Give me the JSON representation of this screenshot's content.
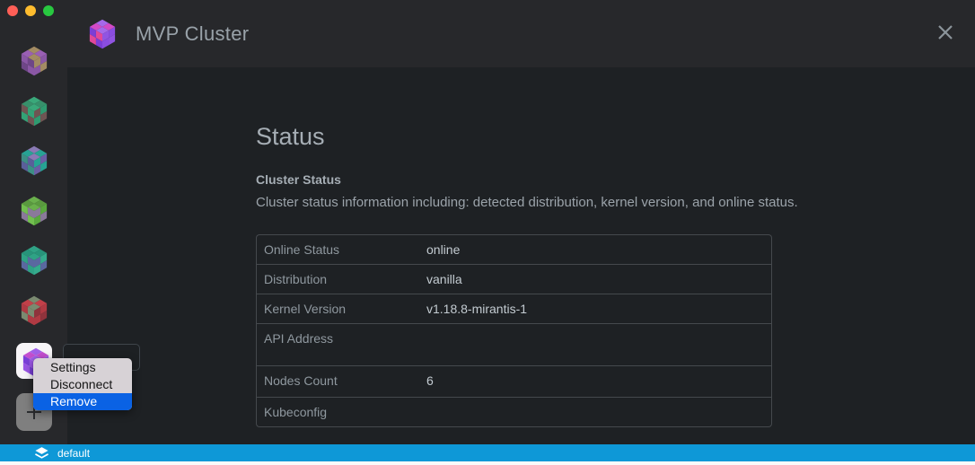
{
  "window": {
    "title": "MVP Cluster",
    "traffic_lights": {
      "red": "#ff5f57",
      "yellow": "#febc2e",
      "green": "#28c840"
    }
  },
  "colors": {
    "window_bg": "#27282b",
    "content_bg": "#1e2124",
    "statusbar": "#0e98d7",
    "menu_highlight": "#0a62e4",
    "menu_bg": "#d7d2d6",
    "table_border": "#45494d"
  },
  "header_icon": {
    "top": [
      "#a569ea",
      "#d24ac6"
    ],
    "left": [
      "#7b3ed6",
      "#e0489a"
    ],
    "right": [
      "#9154e2",
      "#8a4de0"
    ]
  },
  "sidebar": {
    "clusters": [
      {
        "top": [
          "#a38b63",
          "#9a5fb5"
        ],
        "left": [
          "#8a57a5",
          "#6e4687"
        ],
        "right": [
          "#a38b63",
          "#8a57a5"
        ]
      },
      {
        "top": [
          "#3aa87a",
          "#37906b"
        ],
        "left": [
          "#6f5553",
          "#33a276"
        ],
        "right": [
          "#6f5553",
          "#2f9a70"
        ]
      },
      {
        "top": [
          "#8a7ab5",
          "#27a394"
        ],
        "left": [
          "#3d8f85",
          "#5a5f9a"
        ],
        "right": [
          "#27a394",
          "#6a5fa5"
        ]
      },
      {
        "top": [
          "#6ab04c",
          "#5a9a3f"
        ],
        "left": [
          "#72bf4f",
          "#8a799a"
        ],
        "right": [
          "#8a799a",
          "#5aa83e"
        ]
      },
      {
        "top": [
          "#2fa285",
          "#27947a"
        ],
        "left": [
          "#2fa285",
          "#5a68a0"
        ],
        "right": [
          "#5a68a0",
          "#35ab8d"
        ]
      },
      {
        "top": [
          "#7a8a70",
          "#c24049"
        ],
        "left": [
          "#b03a43",
          "#7a8a70"
        ],
        "right": [
          "#8f333c",
          "#b03a43"
        ]
      },
      {
        "top": [
          "#a060e8",
          "#c44fd0"
        ],
        "left": [
          "#7a3fd8",
          "#9a55e5"
        ],
        "right": [
          "#8a4de0",
          "#a060e8"
        ]
      }
    ],
    "selected_index": 6
  },
  "context_menu": {
    "items": [
      {
        "label": "Settings",
        "highlighted": false
      },
      {
        "label": "Disconnect",
        "highlighted": false
      },
      {
        "label": "Remove",
        "highlighted": true
      }
    ]
  },
  "main": {
    "heading": "Status",
    "section_title": "Cluster Status",
    "description": "Cluster status information including: detected distribution, kernel version, and online status.",
    "table": {
      "rows": [
        {
          "label": "Online Status",
          "value": "online"
        },
        {
          "label": "Distribution",
          "value": "vanilla"
        },
        {
          "label": "Kernel Version",
          "value": "v1.18.8-mirantis-1"
        },
        {
          "label": "API Address",
          "value": ""
        },
        {
          "label": "Nodes Count",
          "value": "6"
        },
        {
          "label": "Kubeconfig",
          "value": ""
        }
      ]
    }
  },
  "statusbar": {
    "workspace": "default"
  }
}
